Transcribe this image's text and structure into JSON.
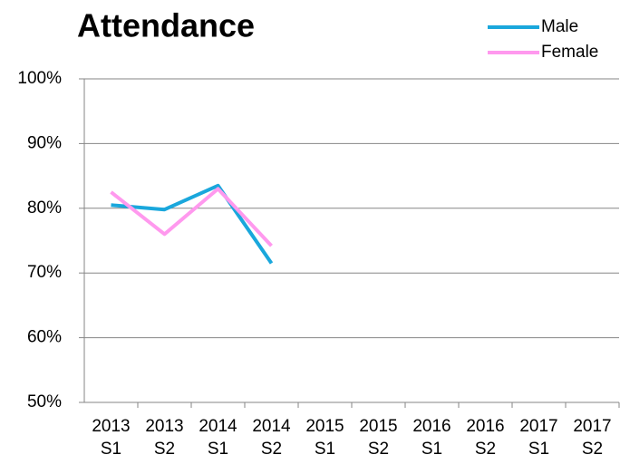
{
  "chart_data": {
    "type": "line",
    "title": "Attendance",
    "categories": [
      "2013 S1",
      "2013 S2",
      "2014 S1",
      "2014 S2",
      "2015 S1",
      "2015 S2",
      "2016 S1",
      "2016 S2",
      "2017 S1",
      "2017 S2"
    ],
    "series": [
      {
        "name": "Male",
        "color": "#1aa7dc",
        "values": [
          80.5,
          79.8,
          83.5,
          71.5,
          null,
          null,
          null,
          null,
          null,
          null
        ]
      },
      {
        "name": "Female",
        "color": "#ff99ee",
        "values": [
          82.5,
          76,
          83,
          74.2,
          null,
          null,
          null,
          null,
          null,
          null
        ]
      }
    ],
    "ylim": [
      50,
      100
    ],
    "yticks": [
      {
        "value": 50,
        "label": "50%"
      },
      {
        "value": 60,
        "label": "60%"
      },
      {
        "value": 70,
        "label": "70%"
      },
      {
        "value": 80,
        "label": "80%"
      },
      {
        "value": 90,
        "label": "90%"
      },
      {
        "value": 100,
        "label": "100%"
      }
    ],
    "grid": true,
    "legend": "top-right"
  }
}
